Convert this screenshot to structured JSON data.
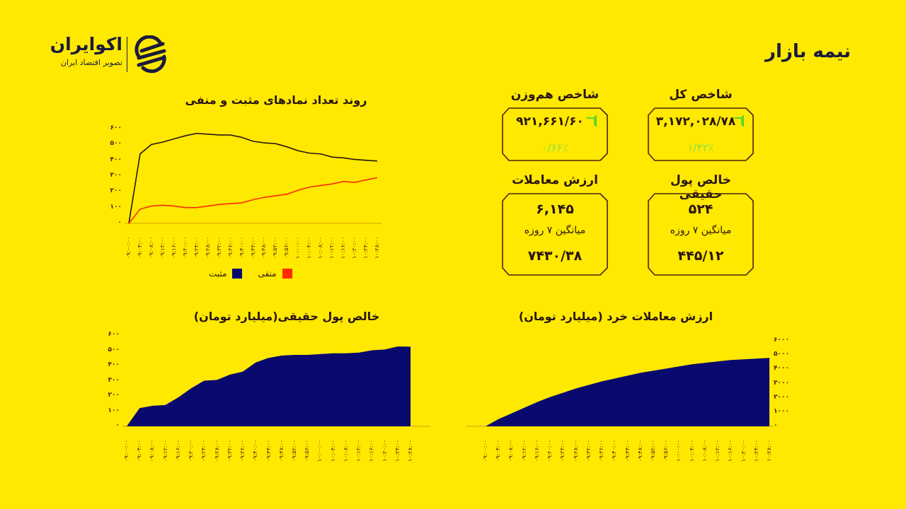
{
  "header": {
    "title": "نیمه بازار",
    "logo": {
      "brand": "اکوایران",
      "tagline": "تصویر اقتصاد ایران",
      "icon": "ecoiran-swirl-icon"
    }
  },
  "cards": {
    "total_index": {
      "title": "شاخص کل",
      "value": "۳,۱۷۲,۰۲۸/۷۸",
      "change": "۱/۴۲٪",
      "trend": "up",
      "arrow_color": "#5bd430"
    },
    "equal_weight_index": {
      "title": "شاخص هم‌وزن",
      "value": "۹۲۱,۶۶۱/۶۰",
      "change": "۰/۶۶٪",
      "trend": "up",
      "arrow_color": "#5bd430"
    },
    "net_real_money": {
      "title": "خالص پول حقیقی",
      "value": "۵۲۴",
      "avg_label": "میانگین ۷ روزه",
      "avg_value": "۴۴۵/۱۲"
    },
    "trade_value": {
      "title": "ارزش معاملات",
      "value": "۶,۱۴۵",
      "avg_label": "میانگین ۷ روزه",
      "avg_value": "۷۴۳۰/۳۸"
    }
  },
  "legend": {
    "positive": "مثبت",
    "negative": "منفی"
  },
  "colors": {
    "background": "#ffe900",
    "positive": "#2a1510",
    "negative": "#ff2a00",
    "area": "#0a0a6e",
    "text": "#2a1510",
    "up": "#8ee04a"
  },
  "chart_data": [
    {
      "type": "line",
      "title": "روند تعداد نمادهای مثبت و منفی",
      "xlabel": "",
      "ylabel": "",
      "ylim": [
        0,
        600
      ],
      "yticks": [
        "۰",
        "۱۰۰",
        "۲۰۰",
        "۳۰۰",
        "۴۰۰",
        "۵۰۰",
        "۶۰۰"
      ],
      "categories": [
        "۰۹:۰۰:۰۰",
        "۰۹:۰۴:۰۰",
        "۰۹:۰۸:۰۰",
        "۰۹:۱۲:۰۰",
        "۰۹:۱۶:۰۰",
        "۰۹:۲۰:۰۰",
        "۰۹:۲۴:۰۰",
        "۰۹:۲۸:۰۰",
        "۰۹:۳۲:۰۰",
        "۰۹:۳۶:۰۰",
        "۰۹:۴۰:۰۰",
        "۰۹:۴۴:۰۰",
        "۰۹:۴۸:۰۰",
        "۰۹:۵۲:۰۰",
        "۰۹:۵۶:۰۰",
        "۱۰:۰۰:۰۰",
        "۱۰:۰۴:۰۰",
        "۱۰:۰۸:۰۰",
        "۱۰:۱۲:۰۰",
        "۱۰:۱۶:۰۰",
        "۱۰:۲۰:۰۰",
        "۱۰:۲۴:۰۰",
        "۱۰:۲۸:۰۰"
      ],
      "series": [
        {
          "name": "مثبت",
          "color": "#2a1510",
          "values": [
            0,
            440,
            500,
            515,
            535,
            555,
            570,
            565,
            560,
            560,
            545,
            520,
            510,
            505,
            485,
            460,
            445,
            440,
            420,
            415,
            405,
            400,
            395
          ]
        },
        {
          "name": "منفی",
          "color": "#ff2a00",
          "values": [
            0,
            90,
            110,
            115,
            110,
            100,
            100,
            110,
            120,
            125,
            130,
            150,
            165,
            175,
            185,
            210,
            230,
            240,
            250,
            265,
            260,
            275,
            290
          ]
        }
      ],
      "legend_position": "bottom",
      "grid": false
    },
    {
      "type": "area",
      "title": "خالص پول حقیقی(میلیارد تومان)",
      "ylim": [
        0,
        600
      ],
      "yticks": [
        "۰",
        "۱۰۰",
        "۲۰۰",
        "۳۰۰",
        "۴۰۰",
        "۵۰۰",
        "۶۰۰"
      ],
      "categories": [
        "۰۹:۰۰:۰۰",
        "۰۹:۰۴:۰۰",
        "۰۹:۰۸:۰۰",
        "۰۹:۱۲:۰۰",
        "۰۹:۱۶:۰۰",
        "۰۹:۲۰:۰۰",
        "۰۹:۲۴:۰۰",
        "۰۹:۲۸:۰۰",
        "۰۹:۳۲:۰۰",
        "۰۹:۳۶:۰۰",
        "۰۹:۴۰:۰۰",
        "۰۹:۴۴:۰۰",
        "۰۹:۴۸:۰۰",
        "۰۹:۵۲:۰۰",
        "۰۹:۵۶:۰۰",
        "۱۰:۰۰:۰۰",
        "۱۰:۰۴:۰۰",
        "۱۰:۰۸:۰۰",
        "۱۰:۱۲:۰۰",
        "۱۰:۱۶:۰۰",
        "۱۰:۲۰:۰۰",
        "۱۰:۲۴:۰۰",
        "۱۰:۲۸:۰۰"
      ],
      "series": [
        {
          "name": "خالص پول حقیقی",
          "color": "#0a0a6e",
          "values": [
            0,
            120,
            135,
            140,
            190,
            250,
            300,
            305,
            340,
            360,
            420,
            450,
            465,
            470,
            470,
            475,
            480,
            480,
            485,
            500,
            505,
            525,
            524
          ]
        }
      ],
      "grid": false
    },
    {
      "type": "area",
      "title": "ارزش معاملات خرد (میلیارد تومان)",
      "ylim": [
        0,
        6000
      ],
      "yticks": [
        "۰",
        "۱۰۰۰",
        "۲۰۰۰",
        "۳۰۰۰",
        "۴۰۰۰",
        "۵۰۰۰",
        "۶۰۰۰"
      ],
      "y_axis_position": "right",
      "categories": [
        "۰۹:۰۰:۰۰",
        "۰۹:۰۴:۰۰",
        "۰۹:۰۸:۰۰",
        "۰۹:۱۲:۰۰",
        "۰۹:۱۶:۰۰",
        "۰۹:۲۰:۰۰",
        "۰۹:۲۴:۰۰",
        "۰۹:۲۸:۰۰",
        "۰۹:۳۲:۰۰",
        "۰۹:۳۶:۰۰",
        "۰۹:۴۰:۰۰",
        "۰۹:۴۴:۰۰",
        "۰۹:۴۸:۰۰",
        "۰۹:۵۲:۰۰",
        "۰۹:۵۶:۰۰",
        "۱۰:۰۰:۰۰",
        "۱۰:۰۴:۰۰",
        "۱۰:۰۸:۰۰",
        "۱۰:۱۲:۰۰",
        "۱۰:۱۶:۰۰",
        "۱۰:۲۰:۰۰",
        "۱۰:۲۴:۰۰",
        "۱۰:۲۸:۰۰"
      ],
      "series": [
        {
          "name": "ارزش معاملات خرد",
          "color": "#0a0a6e",
          "values": [
            0,
            500,
            900,
            1300,
            1700,
            2050,
            2350,
            2650,
            2900,
            3150,
            3350,
            3550,
            3750,
            3900,
            4050,
            4200,
            4350,
            4450,
            4550,
            4650,
            4700,
            4750,
            4800
          ]
        }
      ],
      "grid": false
    }
  ]
}
